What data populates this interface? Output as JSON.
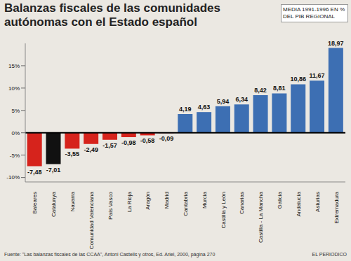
{
  "chart_data": {
    "type": "bar",
    "title": "Balanzas fiscales de las comunidades autónomas con el Estado español",
    "subtitle": "MEDIA 1991-1996 EN % DEL PIB REGIONAL",
    "source": "Fuente: \"Las balanzas fiscales de las CCAA\", Antoni Castells y otros, Ed. Ariel, 2000, página 270",
    "credit": "EL PERIODICO",
    "categories": [
      "Baleares",
      "Catalunya",
      "Navarra",
      "Comunidad Valenciana",
      "País Vasco",
      "La Rioja",
      "Aragón",
      "Madrid",
      "Cantabria",
      "Murcia",
      "Castilla y León",
      "Canarias",
      "Castilla - La Mancha",
      "Galicia",
      "Andalucía",
      "Asturias",
      "Extremadura"
    ],
    "values": [
      -7.48,
      -7.01,
      -3.55,
      -2.49,
      -1.57,
      -0.98,
      -0.58,
      -0.09,
      4.19,
      4.63,
      5.94,
      6.34,
      8.42,
      8.81,
      10.86,
      11.67,
      18.97
    ],
    "value_labels": [
      "-7,48",
      "-7,01",
      "-3,55",
      "-2,49",
      "-1,57",
      "-0,98",
      "-0,58",
      "-0,09",
      "4,19",
      "4,63",
      "5,94",
      "6,34",
      "8,42",
      "8,81",
      "10,86",
      "11,67",
      "18,97"
    ],
    "colors": [
      "#d6231c",
      "#111111",
      "#d6231c",
      "#d6231c",
      "#d6231c",
      "#d6231c",
      "#d6231c",
      "#d6231c",
      "#3d6fb3",
      "#3d6fb3",
      "#3d6fb3",
      "#3d6fb3",
      "#3d6fb3",
      "#3d6fb3",
      "#3d6fb3",
      "#3d6fb3",
      "#3d6fb3"
    ],
    "ylim": [
      -11,
      20
    ],
    "yticks": [
      {
        "value": -10,
        "label": "-10%"
      },
      {
        "value": -5,
        "label": "-5%"
      },
      {
        "value": 0,
        "label": "0%"
      },
      {
        "value": 5,
        "label": "5%"
      },
      {
        "value": 10,
        "label": "10%"
      },
      {
        "value": 15,
        "label": "15%"
      }
    ],
    "grid": false,
    "data_labels": true
  }
}
